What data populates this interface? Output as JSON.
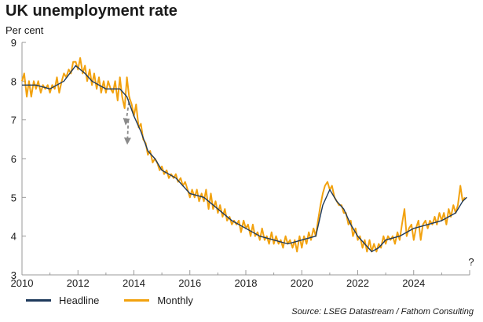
{
  "title": "UK unemployment rate",
  "unit": "Per cent",
  "source": "Source: LSEG Datastream / Fathom Consulting",
  "annotation": "?",
  "colors": {
    "headline": "#1f3a5c",
    "monthly": "#f2a20f",
    "arrow": "#8a8a8a",
    "axis": "#999999"
  },
  "chart_data": {
    "type": "line",
    "xlim": [
      2010,
      2026
    ],
    "ylim": [
      3,
      9
    ],
    "x_ticks": [
      "2010",
      "2012",
      "2014",
      "2016",
      "2018",
      "2020",
      "2022",
      "2024"
    ],
    "y_ticks": [
      "3",
      "4",
      "5",
      "6",
      "7",
      "8",
      "9"
    ],
    "grid": false,
    "legend_position": "bottom-left",
    "series": [
      {
        "name": "Headline",
        "points": [
          [
            2010.0,
            7.9
          ],
          [
            2010.5,
            7.9
          ],
          [
            2011.0,
            7.8
          ],
          [
            2011.5,
            8.0
          ],
          [
            2011.92,
            8.4
          ],
          [
            2012.25,
            8.2
          ],
          [
            2012.5,
            8.0
          ],
          [
            2012.75,
            7.9
          ],
          [
            2013.0,
            7.8
          ],
          [
            2013.5,
            7.8
          ],
          [
            2013.75,
            7.6
          ],
          [
            2014.0,
            7.1
          ],
          [
            2014.25,
            6.7
          ],
          [
            2014.5,
            6.2
          ],
          [
            2014.75,
            6.0
          ],
          [
            2015.0,
            5.7
          ],
          [
            2015.5,
            5.5
          ],
          [
            2016.0,
            5.1
          ],
          [
            2016.5,
            5.0
          ],
          [
            2017.0,
            4.7
          ],
          [
            2017.5,
            4.4
          ],
          [
            2018.0,
            4.2
          ],
          [
            2018.5,
            4.0
          ],
          [
            2019.0,
            3.9
          ],
          [
            2019.5,
            3.8
          ],
          [
            2020.0,
            3.9
          ],
          [
            2020.5,
            4.0
          ],
          [
            2020.75,
            4.8
          ],
          [
            2021.0,
            5.2
          ],
          [
            2021.25,
            4.9
          ],
          [
            2021.5,
            4.7
          ],
          [
            2021.75,
            4.3
          ],
          [
            2022.0,
            4.0
          ],
          [
            2022.25,
            3.8
          ],
          [
            2022.5,
            3.6
          ],
          [
            2022.75,
            3.7
          ],
          [
            2023.0,
            3.9
          ],
          [
            2023.5,
            4.0
          ],
          [
            2024.0,
            4.2
          ],
          [
            2024.5,
            4.3
          ],
          [
            2025.0,
            4.4
          ],
          [
            2025.5,
            4.6
          ],
          [
            2025.75,
            4.9
          ],
          [
            2025.9,
            5.0
          ]
        ]
      },
      {
        "name": "Monthly",
        "points": [
          [
            2010.0,
            8.0
          ],
          [
            2010.08,
            8.2
          ],
          [
            2010.17,
            7.6
          ],
          [
            2010.25,
            8.0
          ],
          [
            2010.33,
            7.6
          ],
          [
            2010.42,
            8.0
          ],
          [
            2010.5,
            7.8
          ],
          [
            2010.58,
            8.0
          ],
          [
            2010.67,
            7.7
          ],
          [
            2010.75,
            7.9
          ],
          [
            2010.83,
            7.8
          ],
          [
            2010.92,
            7.9
          ],
          [
            2011.0,
            7.7
          ],
          [
            2011.08,
            7.9
          ],
          [
            2011.17,
            7.8
          ],
          [
            2011.25,
            8.1
          ],
          [
            2011.33,
            7.7
          ],
          [
            2011.42,
            8.0
          ],
          [
            2011.5,
            8.2
          ],
          [
            2011.58,
            8.1
          ],
          [
            2011.67,
            8.3
          ],
          [
            2011.75,
            8.2
          ],
          [
            2011.83,
            8.5
          ],
          [
            2011.92,
            8.5
          ],
          [
            2012.0,
            8.3
          ],
          [
            2012.08,
            8.6
          ],
          [
            2012.17,
            8.2
          ],
          [
            2012.25,
            8.4
          ],
          [
            2012.33,
            8.0
          ],
          [
            2012.42,
            8.3
          ],
          [
            2012.5,
            7.9
          ],
          [
            2012.58,
            8.2
          ],
          [
            2012.67,
            7.8
          ],
          [
            2012.75,
            8.1
          ],
          [
            2012.83,
            7.7
          ],
          [
            2012.92,
            8.0
          ],
          [
            2013.0,
            7.7
          ],
          [
            2013.08,
            8.0
          ],
          [
            2013.17,
            7.8
          ],
          [
            2013.25,
            7.7
          ],
          [
            2013.33,
            8.0
          ],
          [
            2013.42,
            7.5
          ],
          [
            2013.5,
            8.1
          ],
          [
            2013.58,
            7.6
          ],
          [
            2013.67,
            7.3
          ],
          [
            2013.75,
            8.1
          ],
          [
            2013.83,
            7.6
          ],
          [
            2013.92,
            7.4
          ],
          [
            2014.0,
            7.1
          ],
          [
            2014.08,
            7.4
          ],
          [
            2014.17,
            6.8
          ],
          [
            2014.25,
            6.9
          ],
          [
            2014.33,
            6.5
          ],
          [
            2014.42,
            6.4
          ],
          [
            2014.5,
            6.1
          ],
          [
            2014.58,
            6.2
          ],
          [
            2014.67,
            5.9
          ],
          [
            2014.75,
            6.0
          ],
          [
            2014.83,
            5.9
          ],
          [
            2014.92,
            5.7
          ],
          [
            2015.0,
            5.8
          ],
          [
            2015.08,
            5.6
          ],
          [
            2015.17,
            5.7
          ],
          [
            2015.25,
            5.5
          ],
          [
            2015.33,
            5.6
          ],
          [
            2015.42,
            5.5
          ],
          [
            2015.5,
            5.6
          ],
          [
            2015.58,
            5.4
          ],
          [
            2015.67,
            5.5
          ],
          [
            2015.75,
            5.3
          ],
          [
            2015.83,
            5.4
          ],
          [
            2015.92,
            5.2
          ],
          [
            2016.0,
            5.0
          ],
          [
            2016.08,
            5.2
          ],
          [
            2016.17,
            5.0
          ],
          [
            2016.25,
            5.2
          ],
          [
            2016.33,
            4.9
          ],
          [
            2016.42,
            5.1
          ],
          [
            2016.5,
            4.9
          ],
          [
            2016.58,
            5.2
          ],
          [
            2016.67,
            4.7
          ],
          [
            2016.75,
            5.1
          ],
          [
            2016.83,
            4.7
          ],
          [
            2016.92,
            4.9
          ],
          [
            2017.0,
            4.6
          ],
          [
            2017.08,
            4.8
          ],
          [
            2017.17,
            4.5
          ],
          [
            2017.25,
            4.7
          ],
          [
            2017.33,
            4.4
          ],
          [
            2017.42,
            4.5
          ],
          [
            2017.5,
            4.3
          ],
          [
            2017.58,
            4.4
          ],
          [
            2017.67,
            4.3
          ],
          [
            2017.75,
            4.4
          ],
          [
            2017.83,
            4.1
          ],
          [
            2017.92,
            4.4
          ],
          [
            2018.0,
            4.2
          ],
          [
            2018.08,
            4.3
          ],
          [
            2018.17,
            4.0
          ],
          [
            2018.25,
            4.3
          ],
          [
            2018.33,
            4.0
          ],
          [
            2018.42,
            4.1
          ],
          [
            2018.5,
            3.9
          ],
          [
            2018.58,
            4.2
          ],
          [
            2018.67,
            3.9
          ],
          [
            2018.75,
            4.0
          ],
          [
            2018.83,
            3.8
          ],
          [
            2018.92,
            4.1
          ],
          [
            2019.0,
            3.8
          ],
          [
            2019.08,
            4.0
          ],
          [
            2019.17,
            3.8
          ],
          [
            2019.25,
            3.9
          ],
          [
            2019.33,
            3.7
          ],
          [
            2019.42,
            4.0
          ],
          [
            2019.5,
            3.8
          ],
          [
            2019.58,
            3.9
          ],
          [
            2019.67,
            3.7
          ],
          [
            2019.75,
            3.9
          ],
          [
            2019.83,
            3.6
          ],
          [
            2019.92,
            4.0
          ],
          [
            2020.0,
            3.7
          ],
          [
            2020.08,
            4.0
          ],
          [
            2020.17,
            3.8
          ],
          [
            2020.25,
            4.1
          ],
          [
            2020.33,
            3.9
          ],
          [
            2020.42,
            4.2
          ],
          [
            2020.5,
            4.0
          ],
          [
            2020.58,
            4.4
          ],
          [
            2020.67,
            4.8
          ],
          [
            2020.75,
            5.1
          ],
          [
            2020.83,
            5.3
          ],
          [
            2020.92,
            5.4
          ],
          [
            2021.0,
            5.2
          ],
          [
            2021.08,
            5.3
          ],
          [
            2021.17,
            5.0
          ],
          [
            2021.25,
            4.9
          ],
          [
            2021.33,
            4.8
          ],
          [
            2021.42,
            4.8
          ],
          [
            2021.5,
            4.6
          ],
          [
            2021.58,
            4.6
          ],
          [
            2021.67,
            4.3
          ],
          [
            2021.75,
            4.4
          ],
          [
            2021.83,
            4.0
          ],
          [
            2021.92,
            4.2
          ],
          [
            2022.0,
            3.9
          ],
          [
            2022.08,
            4.0
          ],
          [
            2022.17,
            3.7
          ],
          [
            2022.25,
            3.9
          ],
          [
            2022.33,
            3.6
          ],
          [
            2022.42,
            3.9
          ],
          [
            2022.5,
            3.6
          ],
          [
            2022.58,
            3.8
          ],
          [
            2022.67,
            3.6
          ],
          [
            2022.75,
            3.8
          ],
          [
            2022.83,
            3.7
          ],
          [
            2022.92,
            4.0
          ],
          [
            2023.0,
            3.8
          ],
          [
            2023.08,
            4.0
          ],
          [
            2023.17,
            3.9
          ],
          [
            2023.25,
            4.0
          ],
          [
            2023.33,
            3.8
          ],
          [
            2023.42,
            4.1
          ],
          [
            2023.5,
            3.9
          ],
          [
            2023.58,
            4.3
          ],
          [
            2023.67,
            4.7
          ],
          [
            2023.75,
            4.0
          ],
          [
            2023.83,
            4.2
          ],
          [
            2023.92,
            4.3
          ],
          [
            2024.0,
            3.9
          ],
          [
            2024.08,
            4.2
          ],
          [
            2024.17,
            4.4
          ],
          [
            2024.25,
            3.9
          ],
          [
            2024.33,
            4.3
          ],
          [
            2024.42,
            4.4
          ],
          [
            2024.5,
            4.2
          ],
          [
            2024.58,
            4.4
          ],
          [
            2024.67,
            4.3
          ],
          [
            2024.75,
            4.5
          ],
          [
            2024.83,
            4.3
          ],
          [
            2024.92,
            4.6
          ],
          [
            2025.0,
            4.4
          ],
          [
            2025.08,
            4.6
          ],
          [
            2025.17,
            4.3
          ],
          [
            2025.25,
            4.7
          ],
          [
            2025.33,
            4.5
          ],
          [
            2025.42,
            4.8
          ],
          [
            2025.5,
            4.6
          ],
          [
            2025.58,
            4.8
          ],
          [
            2025.67,
            5.3
          ],
          [
            2025.75,
            4.9
          ],
          [
            2025.83,
            5.0
          ]
        ]
      }
    ]
  }
}
